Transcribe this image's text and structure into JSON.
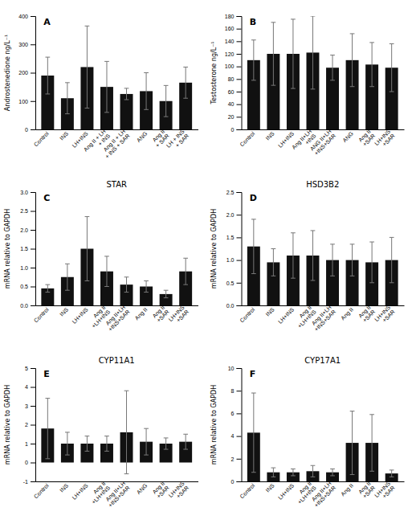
{
  "chart_data": [
    {
      "type": "bar",
      "annotations": [
        "A"
      ],
      "ylabel": "Androstenedione ng/L⁻¹",
      "categories": [
        "Control",
        "INS",
        "LH+INS",
        "Ang II + LH\n+ INS",
        "Ang II + LH\n+ INS + SAR",
        "ANG",
        "Ang II\n+ SAR",
        "LH + INS\n+ SAR"
      ],
      "values": [
        190,
        110,
        220,
        150,
        125,
        135,
        100,
        165
      ],
      "errors": [
        65,
        55,
        145,
        90,
        20,
        65,
        55,
        55
      ],
      "color": "#111111",
      "ylim": [
        0,
        400
      ],
      "yticks": [
        0,
        100,
        200,
        300,
        400
      ]
    },
    {
      "type": "bar",
      "annotations": [
        "B"
      ],
      "ylabel": "Testosterone ng/L⁻¹",
      "categories": [
        "Control",
        "INS",
        "LH+INS",
        "Ang II+LH\n+INS",
        "ANG II+LH\n+INS+SAR",
        "ANG",
        "Ang II\n+SAR",
        "LH+INS\n+SAR"
      ],
      "values": [
        110,
        120,
        120,
        122,
        98,
        110,
        103,
        98
      ],
      "errors": [
        32,
        50,
        55,
        58,
        20,
        42,
        35,
        38
      ],
      "color": "#111111",
      "ylim": [
        0,
        180
      ],
      "yticks": [
        0,
        20,
        40,
        60,
        80,
        100,
        120,
        140,
        160,
        180
      ]
    },
    {
      "type": "bar",
      "annotations": [
        "C"
      ],
      "title": "STAR",
      "ylabel": "mRNA relative to GAPDH",
      "categories": [
        "Control",
        "INS",
        "LH+INS",
        "Ang II\n+LH+INS",
        "Ang II+LH\n+INS+SAR",
        "Ang II",
        "Ang II\n+SAR",
        "LH+INS\n+SAR"
      ],
      "values": [
        0.45,
        0.75,
        1.5,
        0.9,
        0.55,
        0.5,
        0.3,
        0.9
      ],
      "errors": [
        0.1,
        0.35,
        0.85,
        0.4,
        0.2,
        0.15,
        0.1,
        0.35
      ],
      "color": "#111111",
      "ylim": [
        0,
        3.0
      ],
      "yticks": [
        {
          "value": 0,
          "label": "0.0"
        },
        0.5,
        {
          "value": 1,
          "label": "1.0"
        },
        1.5,
        {
          "value": 2,
          "label": "2.0"
        },
        2.5,
        {
          "value": 3,
          "label": "3.0"
        }
      ]
    },
    {
      "type": "bar",
      "annotations": [
        "D"
      ],
      "title": "HSD3B2",
      "ylabel": "mRNA relative to GAPDH",
      "categories": [
        "Control",
        "INS",
        "LH+INS",
        "Ang II\n+LH+INS",
        "Ang II+LH\n+INS+SAR",
        "Ang II",
        "Ang II\n+SAR",
        "LH+INS\n+SAR"
      ],
      "values": [
        1.3,
        0.95,
        1.1,
        1.1,
        1.0,
        1.0,
        0.95,
        1.0
      ],
      "errors": [
        0.6,
        0.3,
        0.5,
        0.55,
        0.35,
        0.35,
        0.45,
        0.5
      ],
      "color": "#111111",
      "ylim": [
        0,
        2.5
      ],
      "yticks": [
        {
          "value": 0,
          "label": "0.0"
        },
        0.5,
        {
          "value": 1,
          "label": "1.0"
        },
        1.5,
        {
          "value": 2,
          "label": "2.0"
        },
        2.5
      ]
    },
    {
      "type": "bar",
      "annotations": [
        "E"
      ],
      "title": "CYP11A1",
      "ylabel": "mRNA relative to GAPDH",
      "categories": [
        "Control",
        "INS",
        "LH+INS",
        "Ang II\n+LH+INS",
        "Ang II+LH\n+INS+SAR",
        "ANG",
        "Ang II\n+SAR",
        "LH+INS\n+SAR"
      ],
      "values": [
        1.8,
        1.0,
        1.0,
        1.0,
        1.6,
        1.1,
        1.0,
        1.1
      ],
      "errors": [
        1.6,
        0.6,
        0.4,
        0.4,
        2.2,
        0.7,
        0.3,
        0.4
      ],
      "color": "#111111",
      "ylim": [
        -1,
        5
      ],
      "yticks": [
        -1,
        0,
        1,
        2,
        3,
        4,
        5
      ]
    },
    {
      "type": "bar",
      "annotations": [
        "F"
      ],
      "title": "CYP17A1",
      "ylabel": "mRNA relative to GAPDH",
      "categories": [
        "Control",
        "INS",
        "LH+INS",
        "Ang II\n+LH+INS",
        "Ang II+LH\n+INS+SAR",
        "Ang II",
        "Ang II\n+SAR",
        "LH+INS\n+SAR"
      ],
      "values": [
        4.3,
        0.8,
        0.8,
        0.9,
        0.8,
        3.4,
        3.4,
        0.7
      ],
      "errors": [
        3.5,
        0.4,
        0.3,
        0.5,
        0.3,
        2.8,
        2.5,
        0.3
      ],
      "color": "#111111",
      "ylim": [
        0,
        10
      ],
      "yticks": [
        0,
        2,
        4,
        6,
        8,
        10
      ]
    }
  ]
}
